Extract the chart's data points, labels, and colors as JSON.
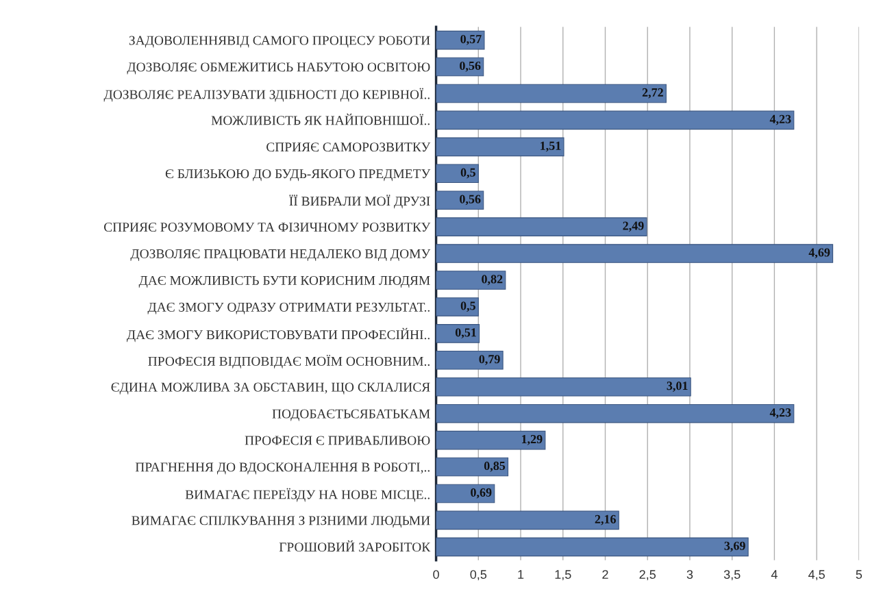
{
  "chart_data": {
    "type": "bar",
    "orientation": "horizontal",
    "categories": [
      "ЗАДОВОЛЕННЯВІД САМОГО ПРОЦЕСУ РОБОТИ",
      "ДОЗВОЛЯЄ ОБМЕЖИТИСЬ НАБУТОЮ ОСВІТОЮ",
      "ДОЗВОЛЯЄ РЕАЛІЗУВАТИ ЗДІБНОСТІ ДО КЕРІВНОЇ..",
      "МОЖЛИВІСТЬ ЯК НАЙПОВНІШОЇ..",
      "СПРИЯЄ САМОРОЗВИТКУ",
      "Є БЛИЗЬКОЮ ДО БУДЬ-ЯКОГО ПРЕДМЕТУ",
      "ЇЇ ВИБРАЛИ МОЇ ДРУЗІ",
      "СПРИЯЄ РОЗУМОВОМУ ТА ФІЗИЧНОМУ РОЗВИТКУ",
      "ДОЗВОЛЯЄ ПРАЦЮВАТИ НЕДАЛЕКО ВІД ДОМУ",
      "ДАЄ МОЖЛИВІСТЬ БУТИ КОРИСНИМ ЛЮДЯМ",
      "ДАЄ ЗМОГУ ОДРАЗУ ОТРИМАТИ РЕЗУЛЬТАТ..",
      "ДАЄ ЗМОГУ ВИКОРИСТОВУВАТИ ПРОФЕСІЙНІ..",
      "ПРОФЕСІЯ ВІДПОВІДАЄ МОЇМ ОСНОВНИМ..",
      "ЄДИНА МОЖЛИВА ЗА ОБСТАВИН, ЩО СКЛАЛИСЯ",
      "ПОДОБАЄТЬСЯБАТЬКАМ",
      "ПРОФЕСІЯ Є ПРИВАБЛИВОЮ",
      "ПРАГНЕННЯ ДО ВДОСКОНАЛЕННЯ В РОБОТІ,..",
      "ВИМАГАЄ ПЕРЕЇЗДУ НА НОВЕ МІСЦЕ..",
      "ВИМАГАЄ СПІЛКУВАННЯ З РІЗНИМИ ЛЮДЬМИ",
      "ГРОШОВИЙ ЗАРОБІТОК"
    ],
    "values": [
      0.57,
      0.56,
      2.72,
      4.23,
      1.51,
      0.5,
      0.56,
      2.49,
      4.69,
      0.82,
      0.5,
      0.51,
      0.79,
      3.01,
      4.23,
      1.29,
      0.85,
      0.69,
      2.16,
      3.69
    ],
    "value_labels": [
      "0,57",
      "0,56",
      "2,72",
      "4,23",
      "1,51",
      "0,5",
      "0,56",
      "2,49",
      "4,69",
      "0,82",
      "0,5",
      "0,51",
      "0,79",
      "3,01",
      "4,23",
      "1,29",
      "0,85",
      "0,69",
      "2,16",
      "3,69"
    ],
    "color": "#5b7db0",
    "xlim": [
      0,
      5
    ],
    "xticks": [
      0,
      {
        "value": 0.5,
        "label": "0,5"
      },
      1,
      {
        "value": 1.5,
        "label": "1,5"
      },
      2,
      {
        "value": 2.5,
        "label": "2,5"
      },
      3,
      {
        "value": 3.5,
        "label": "3,5"
      },
      4,
      {
        "value": 4.5,
        "label": "4,5"
      },
      5
    ],
    "grid": "x",
    "legend": false
  }
}
